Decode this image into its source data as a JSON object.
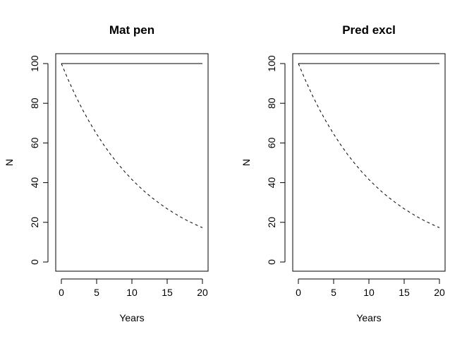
{
  "chart_data": [
    {
      "type": "line",
      "title": "Mat pen",
      "xlabel": "Years",
      "ylabel": "N",
      "xlim": [
        0,
        20
      ],
      "ylim": [
        0,
        100
      ],
      "xticks": [
        "0",
        "5",
        "10",
        "15",
        "20"
      ],
      "yticks": [
        "0",
        "20",
        "40",
        "60",
        "80",
        "100"
      ],
      "grid": false,
      "x": [
        0,
        1,
        2,
        3,
        4,
        5,
        6,
        7,
        8,
        9,
        10,
        11,
        12,
        13,
        14,
        15,
        16,
        17,
        18,
        19,
        20
      ],
      "series": [
        {
          "line_style": "solid",
          "values": [
            100,
            100,
            100,
            100,
            100,
            100,
            100,
            100,
            100,
            100,
            100,
            100,
            100,
            100,
            100,
            100,
            100,
            100,
            100,
            100,
            100
          ]
        },
        {
          "line_style": "dashed",
          "values": [
            100,
            91.6,
            83.9,
            76.8,
            70.4,
            64.5,
            59.1,
            54.1,
            49.6,
            45.4,
            41.6,
            38.1,
            34.9,
            32.0,
            29.3,
            26.8,
            24.6,
            22.5,
            20.6,
            18.9,
            17.3
          ]
        }
      ]
    },
    {
      "type": "line",
      "title": "Pred excl",
      "xlabel": "Years",
      "ylabel": "N",
      "xlim": [
        0,
        20
      ],
      "ylim": [
        0,
        100
      ],
      "xticks": [
        "0",
        "5",
        "10",
        "15",
        "20"
      ],
      "yticks": [
        "0",
        "20",
        "40",
        "60",
        "80",
        "100"
      ],
      "grid": false,
      "x": [
        0,
        1,
        2,
        3,
        4,
        5,
        6,
        7,
        8,
        9,
        10,
        11,
        12,
        13,
        14,
        15,
        16,
        17,
        18,
        19,
        20
      ],
      "series": [
        {
          "line_style": "solid",
          "values": [
            100,
            100,
            100,
            100,
            100,
            100,
            100,
            100,
            100,
            100,
            100,
            100,
            100,
            100,
            100,
            100,
            100,
            100,
            100,
            100,
            100
          ]
        },
        {
          "line_style": "dashed",
          "values": [
            100,
            91.6,
            83.9,
            76.8,
            70.4,
            64.5,
            59.1,
            54.1,
            49.6,
            45.4,
            41.6,
            38.1,
            34.9,
            32.0,
            29.3,
            26.8,
            24.6,
            22.5,
            20.6,
            18.9,
            17.3
          ]
        }
      ]
    }
  ]
}
